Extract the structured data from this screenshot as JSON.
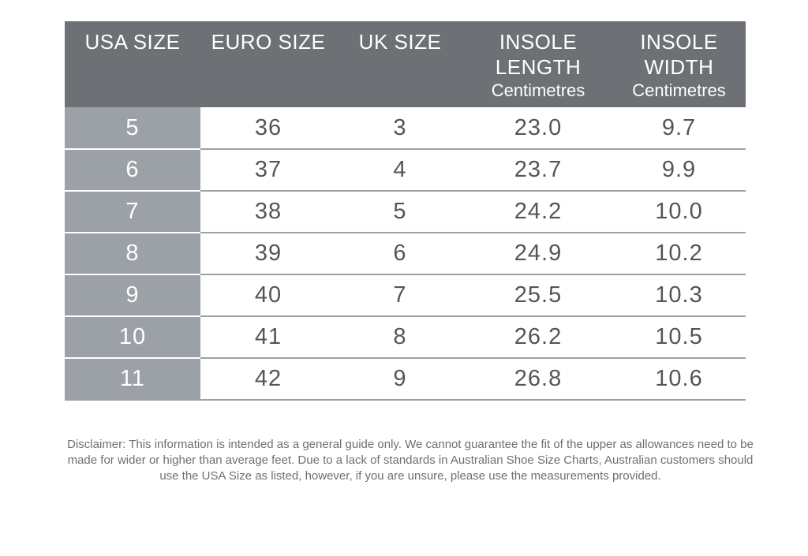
{
  "table": {
    "headers": [
      {
        "lines": [
          "USA SIZE"
        ],
        "unit": ""
      },
      {
        "lines": [
          "EURO SIZE"
        ],
        "unit": ""
      },
      {
        "lines": [
          "UK SIZE"
        ],
        "unit": ""
      },
      {
        "lines": [
          "INSOLE",
          "LENGTH"
        ],
        "unit": "Centimetres"
      },
      {
        "lines": [
          "INSOLE",
          "WIDTH"
        ],
        "unit": "Centimetres"
      }
    ],
    "rows": [
      [
        "5",
        "36",
        "3",
        "23.0",
        "9.7"
      ],
      [
        "6",
        "37",
        "4",
        "23.7",
        "9.9"
      ],
      [
        "7",
        "38",
        "5",
        "24.2",
        "10.0"
      ],
      [
        "8",
        "39",
        "6",
        "24.9",
        "10.2"
      ],
      [
        "9",
        "40",
        "7",
        "25.5",
        "10.3"
      ],
      [
        "10",
        "41",
        "8",
        "26.2",
        "10.5"
      ],
      [
        "11",
        "42",
        "9",
        "26.8",
        "10.6"
      ]
    ]
  },
  "disclaimer": "Disclaimer: This information is intended as a general guide only. We cannot guarantee the fit of the upper as allowances need to be made for wider or higher than average feet. Due to a lack of standards in Australian Shoe Size Charts, Australian customers should use the USA Size as listed, however, if you are unsure, please use the measurements provided.",
  "colors": {
    "header_bg": "#6d7075",
    "usa_col_bg": "#9ba1a6",
    "text": "#555555",
    "rule": "#9da1a5"
  }
}
